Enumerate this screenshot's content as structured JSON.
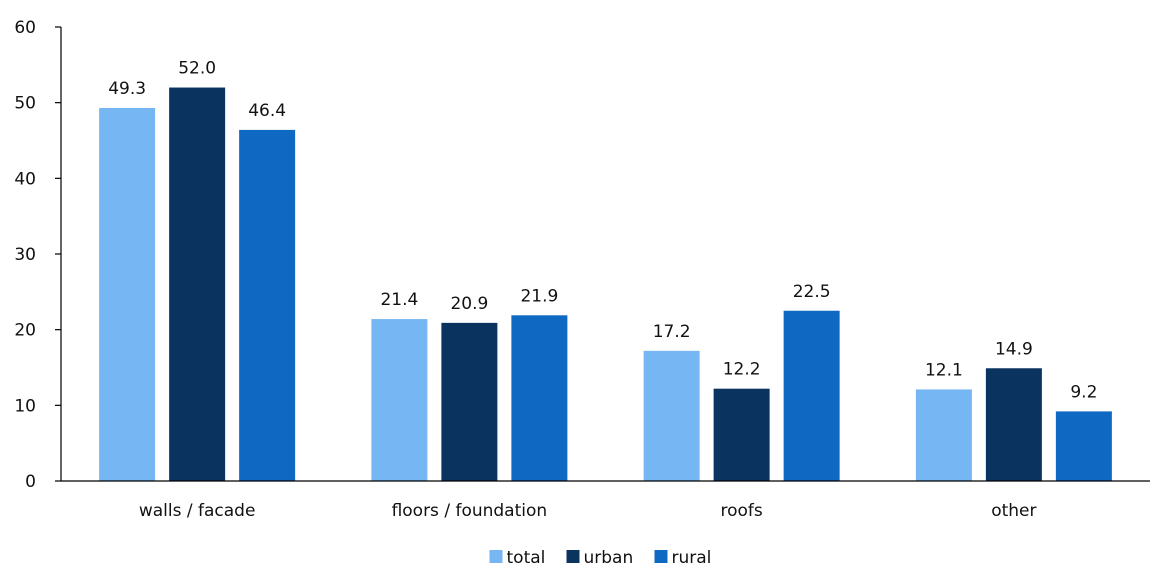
{
  "chart_data": {
    "type": "bar",
    "categories": [
      "walls / facade",
      "floors / foundation",
      "roofs",
      "other"
    ],
    "series": [
      {
        "name": "total",
        "color": "#76b6f2",
        "values": [
          49.3,
          21.4,
          17.2,
          12.1
        ],
        "labels": [
          "49.3",
          "21.4",
          "17.2",
          "12.1"
        ]
      },
      {
        "name": "urban",
        "color": "#0b3360",
        "values": [
          52.0,
          20.9,
          12.2,
          14.9
        ],
        "labels": [
          "52.0",
          "20.9",
          "12.2",
          "14.9"
        ]
      },
      {
        "name": "rural",
        "color": "#0f69c3",
        "values": [
          46.4,
          21.9,
          22.5,
          9.2
        ],
        "labels": [
          "46.4",
          "21.9",
          "22.5",
          "9.2"
        ]
      }
    ],
    "title": "",
    "xlabel": "",
    "ylabel": "",
    "ylim": [
      0,
      60
    ],
    "yticks": [
      "0",
      "10",
      "20",
      "30",
      "40",
      "50",
      "60"
    ],
    "grid": false,
    "legend_position": "bottom-center"
  }
}
